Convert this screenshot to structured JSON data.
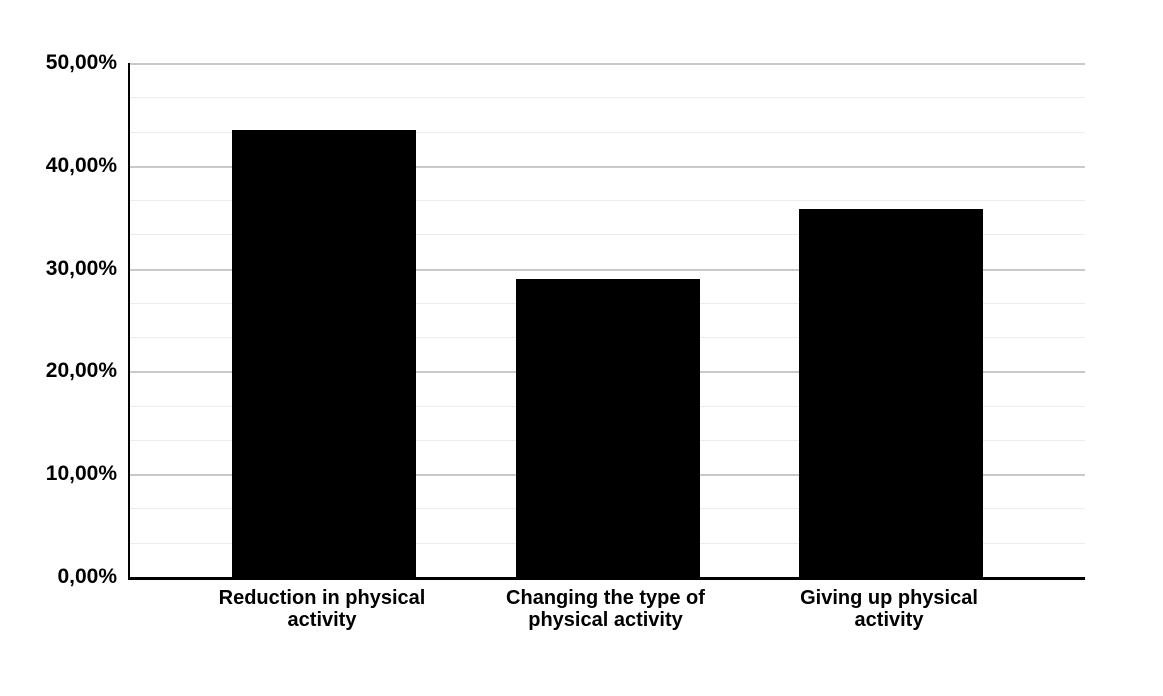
{
  "chart_data": {
    "type": "bar",
    "title": "",
    "subtitle": "",
    "categories": [
      "Reduction in physical activity",
      "Changing the type of physical activity",
      "Giving up physical activity"
    ],
    "values": [
      43.5,
      29.0,
      35.8
    ],
    "value_unit": "%",
    "xlabel": "",
    "ylabel": "",
    "ylim": [
      0,
      50
    ],
    "y_ticks": [
      {
        "value": 0,
        "label": "0,00%"
      },
      {
        "value": 10,
        "label": "10,00%"
      },
      {
        "value": 20,
        "label": "20,00%"
      },
      {
        "value": 30,
        "label": "30,00%"
      },
      {
        "value": 40,
        "label": "40,00%"
      },
      {
        "value": 50,
        "label": "50,00%"
      }
    ],
    "y_major_step": 10,
    "y_minor_step": 3.3333,
    "grid": true,
    "legend": false,
    "decimal_separator": "comma",
    "colors": {
      "bar": "#000000",
      "axis": "#000000",
      "major_gridline": "#c9c9c9",
      "minor_gridline": "#ececec",
      "label_text": "#000000",
      "background": "#ffffff"
    }
  }
}
